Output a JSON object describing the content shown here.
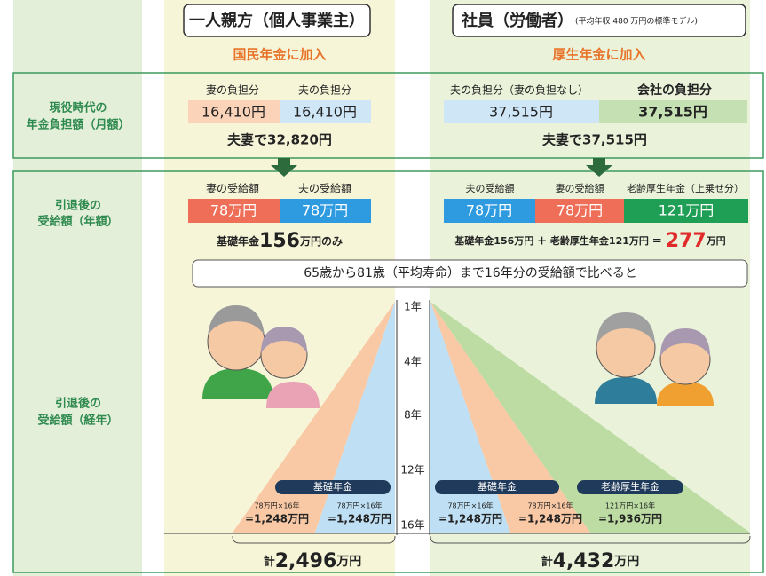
{
  "row_labels": [
    {
      "lines": [
        "現役時代の",
        "年金負担額（月額）"
      ]
    },
    {
      "lines": [
        "引退後の",
        "受給額（年額）"
      ]
    },
    {
      "lines": [
        "引退後の",
        "受給額（経年）"
      ]
    }
  ],
  "self_employed": {
    "title": "一人親方（個人事業主）",
    "plan": "国民年金に加入",
    "contribution": {
      "headers": [
        "妻の負担分",
        "夫の負担分"
      ],
      "amounts": [
        "16,410円",
        "16,410円"
      ],
      "total": "夫妻で32,820円"
    },
    "benefit": {
      "headers": [
        "妻の受給額",
        "夫の受給額"
      ],
      "amounts": [
        "78万円",
        "78万円"
      ],
      "summary": {
        "text": "基礎年金",
        "amount": "156",
        "suffix": "万円のみ"
      }
    },
    "lifetime": {
      "pills": [
        "基礎年金"
      ],
      "calcs": [
        {
          "formula": "78万円×16年",
          "result": "=1,248万円"
        },
        {
          "formula": "78万円×16年",
          "result": "=1,248万円"
        }
      ],
      "total": {
        "prefix": "計",
        "amount": "2,496",
        "suffix": "万円"
      }
    }
  },
  "employee": {
    "title": "社員（労働者）",
    "note": "(平均年収 480 万円の標準モデル)",
    "plan": "厚生年金に加入",
    "contribution": {
      "headers": [
        "夫の負担分（妻の負担なし）",
        "会社の負担分"
      ],
      "amounts": [
        "37,515円",
        "37,515円"
      ],
      "total": "夫妻で37,515円"
    },
    "benefit": {
      "headers": [
        "夫の受給額",
        "妻の受給額",
        "老齢厚生年金（上乗せ分）"
      ],
      "amounts": [
        "78万円",
        "78万円",
        "121万円"
      ],
      "summary": {
        "text": "基礎年金156万円 ＋ 老齢厚生年金121万円 ＝",
        "amount": "277",
        "suffix": "万円"
      }
    },
    "lifetime": {
      "pills": [
        "基礎年金",
        "老齢厚生年金"
      ],
      "calcs": [
        {
          "formula": "78万円×16年",
          "result": "=1,248万円"
        },
        {
          "formula": "78万円×16年",
          "result": "=1,248万円"
        },
        {
          "formula": "121万円×16年",
          "result": "=1,936万円"
        }
      ],
      "total": {
        "prefix": "計",
        "amount": "4,432",
        "suffix": "万円"
      }
    }
  },
  "comparison": "65歳から81歳（平均寿命）まで16年分の受給額で比べると",
  "year_axis": [
    "1年",
    "4年",
    "8年",
    "12年",
    "16年"
  ]
}
